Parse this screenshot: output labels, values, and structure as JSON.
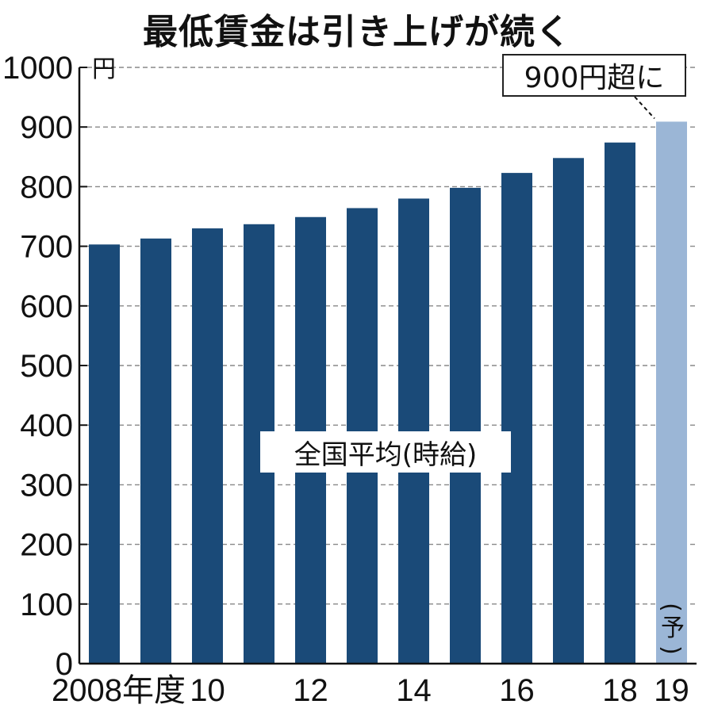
{
  "title": "最低賃金は引き上げが続く",
  "colors": {
    "bar": "#1a4a78",
    "bar_forecast": "#9bb6d6",
    "grid": "#888888"
  },
  "chart_data": {
    "type": "bar",
    "title": "最低賃金は引き上げが続く",
    "series": [
      {
        "name": "全国平均(時給)",
        "values": [
          703,
          713,
          730,
          737,
          749,
          764,
          780,
          798,
          823,
          848,
          874,
          909
        ]
      }
    ],
    "categories": [
      "2008",
      "2009",
      "2010",
      "2011",
      "2012",
      "2013",
      "2014",
      "2015",
      "2016",
      "2017",
      "2018",
      "2019"
    ],
    "x_tick_labels": [
      "2008年度",
      "",
      "10",
      "",
      "12",
      "",
      "14",
      "",
      "16",
      "",
      "18",
      "19"
    ],
    "forecast_label": "(予)",
    "y_unit": "円",
    "ylim": [
      0,
      1000
    ],
    "yticks": [
      0,
      100,
      200,
      300,
      400,
      500,
      600,
      700,
      800,
      900,
      1000
    ],
    "grid": true,
    "annotation": "900円超に"
  }
}
